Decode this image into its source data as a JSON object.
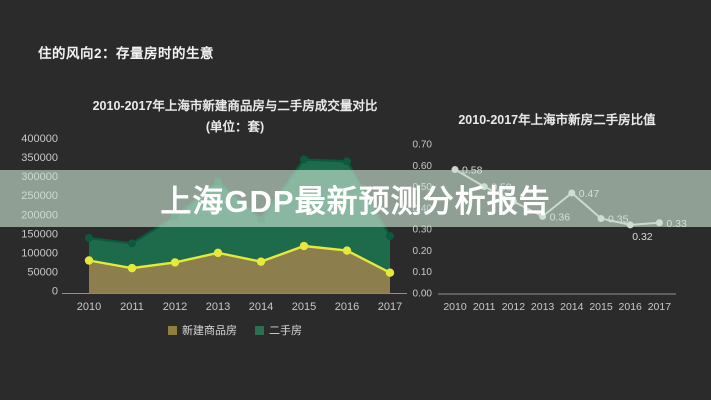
{
  "page": {
    "background": "#2b2b2b",
    "header": "住的风向2：存量房时的生意"
  },
  "overlay": {
    "title": "上海GDP最新预测分析报告",
    "band_color": "rgba(205,230,212,0.62)",
    "text_color": "#ffffff"
  },
  "colors": {
    "axis_text": "#c8c8c8",
    "axis_line": "#909090",
    "new_homes_line": "#e4e93b",
    "new_homes_fill": "#8d7f4d",
    "secondhand_line": "#0c5a3e",
    "secondhand_fill": "#1d6b4b",
    "ratio_line": "#c2c7c2",
    "ratio_marker": "#cdd2cd",
    "data_label": "#d9d9d9"
  },
  "chart_data": [
    {
      "type": "area",
      "title": "2010-2017年上海市新建商品房与二手房成交量对比",
      "subtitle": "(单位：套)",
      "categories": [
        "2010",
        "2011",
        "2012",
        "2013",
        "2014",
        "2015",
        "2016",
        "2017"
      ],
      "series": [
        {
          "name": "新建商品房",
          "color": "#e4e93b",
          "fill": "#8d7f4d",
          "swatch": "#8d7f3d",
          "values": [
            80000,
            60000,
            75000,
            100000,
            77000,
            118000,
            106000,
            48000
          ]
        },
        {
          "name": "二手房",
          "color": "#0c5a3e",
          "fill": "#1d6b4b",
          "swatch": "#2b6e51",
          "values": [
            139000,
            125000,
            195000,
            287000,
            188000,
            345000,
            340000,
            144000
          ]
        }
      ],
      "ylim": [
        0,
        400000
      ],
      "ytick_step": 50000,
      "yticks": [
        "0",
        "50000",
        "100000",
        "150000",
        "200000",
        "250000",
        "300000",
        "350000",
        "400000"
      ],
      "legend_position": "bottom",
      "grid": false
    },
    {
      "type": "line",
      "title": "2010-2017年上海市新房二手房比值",
      "categories": [
        "2010",
        "2011",
        "2012",
        "2013",
        "2014",
        "2015",
        "2016",
        "2017"
      ],
      "series": [
        {
          "name": "新房二手房比值",
          "color": "#c2c7c2",
          "marker": "#cdd2cd",
          "values": [
            0.58,
            0.5,
            0.43,
            0.36,
            0.47,
            0.35,
            0.32,
            0.33
          ],
          "labels": [
            "0.58",
            "0.50",
            null,
            "0.36",
            "0.47",
            "0.35",
            "0.32",
            "0.33"
          ]
        }
      ],
      "ylim": [
        0,
        0.7
      ],
      "ytick_step": 0.1,
      "yticks": [
        "0.00",
        "0.10",
        "0.20",
        "0.30",
        "0.40",
        "0.50",
        "0.60",
        "0.70"
      ],
      "legend_position": "none",
      "grid": false
    }
  ]
}
